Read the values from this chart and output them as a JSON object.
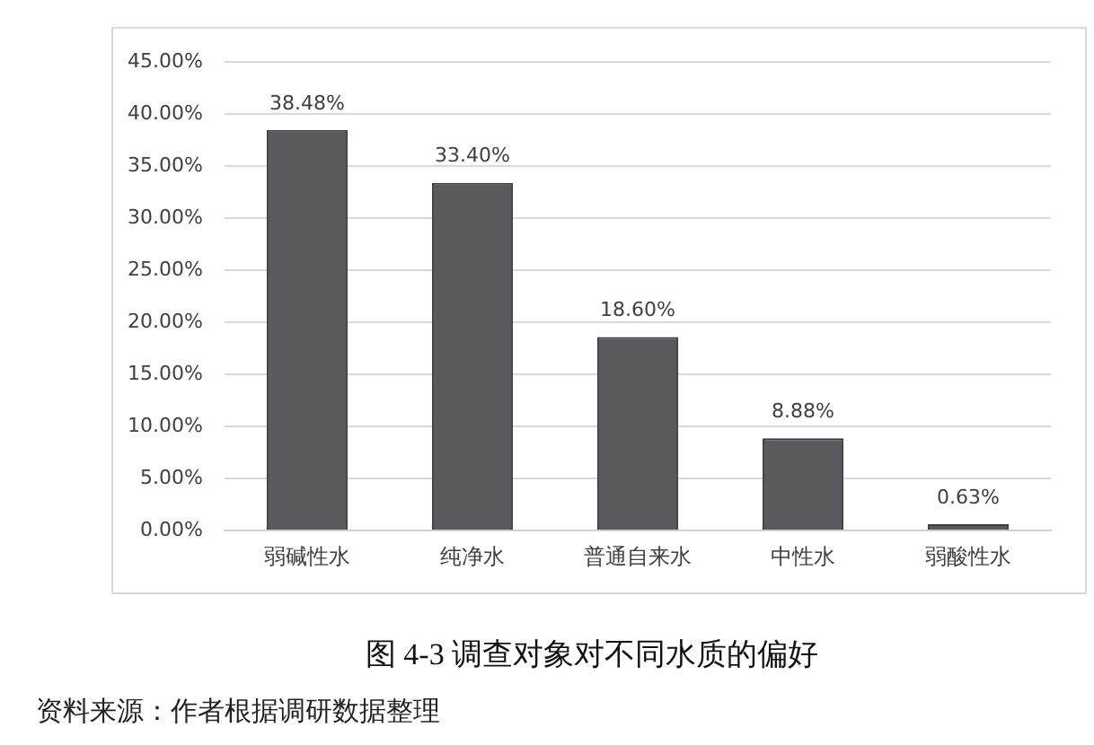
{
  "chart_data": {
    "type": "bar",
    "title": "图 4-3 调查对象对不同水质的偏好",
    "categories": [
      "弱碱性水",
      "纯净水",
      "普通自来水",
      "中性水",
      "弱酸性水"
    ],
    "values": [
      38.48,
      33.4,
      18.6,
      8.88,
      0.63
    ],
    "color": "#5a5a5e",
    "value_labels": [
      "38.48%",
      "33.40%",
      "18.60%",
      "8.88%",
      "0.63%"
    ],
    "ylim": [
      0,
      45
    ],
    "yticks": [
      {
        "value": 0,
        "label": "0.00%"
      },
      {
        "value": 5,
        "label": "5.00%"
      },
      {
        "value": 10,
        "label": "10.00%"
      },
      {
        "value": 15,
        "label": "15.00%"
      },
      {
        "value": 20,
        "label": "20.00%"
      },
      {
        "value": 25,
        "label": "25.00%"
      },
      {
        "value": 30,
        "label": "30.00%"
      },
      {
        "value": 35,
        "label": "35.00%"
      },
      {
        "value": 40,
        "label": "40.00%"
      },
      {
        "value": 45,
        "label": "45.00%"
      }
    ],
    "grid": "y",
    "annotations": [
      "资料来源：作者根据调研数据整理"
    ]
  }
}
